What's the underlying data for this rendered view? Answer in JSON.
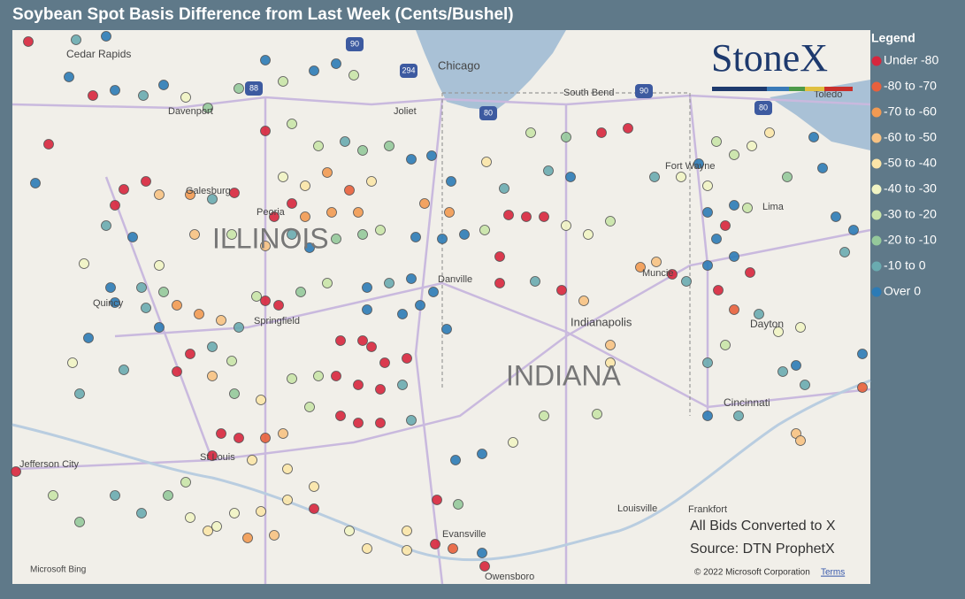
{
  "header": {
    "title": "Soybean Spot Basis Difference from Last Week (Cents/Bushel)"
  },
  "logo": "StoneX",
  "legend": {
    "title": "Legend",
    "items": [
      {
        "label": "Under -80",
        "color": "#d7263d"
      },
      {
        "label": "-80 to -70",
        "color": "#e8603c"
      },
      {
        "label": "-70 to -60",
        "color": "#f29a52"
      },
      {
        "label": "-60 to -50",
        "color": "#f7c283"
      },
      {
        "label": "-50 to -40",
        "color": "#fbe5a8"
      },
      {
        "label": "-40 to -30",
        "color": "#f1f4c4"
      },
      {
        "label": "-30 to -20",
        "color": "#c9e4a9"
      },
      {
        "label": "-20 to -10",
        "color": "#95c99b"
      },
      {
        "label": "-10 to 0",
        "color": "#6aabb0"
      },
      {
        "label": "Over 0",
        "color": "#2c7bb6"
      }
    ]
  },
  "map": {
    "places": [
      {
        "label": "Cedar Rapids"
      },
      {
        "label": "Chicago"
      },
      {
        "label": "South Bend"
      },
      {
        "label": "Toledo"
      },
      {
        "label": "Davenport"
      },
      {
        "label": "Joliet"
      },
      {
        "label": "Galesburg"
      },
      {
        "label": "Peoria"
      },
      {
        "label": "ILLINOIS"
      },
      {
        "label": "Fort Wayne"
      },
      {
        "label": "Lima"
      },
      {
        "label": "Quincy"
      },
      {
        "label": "Springfield"
      },
      {
        "label": "Danville"
      },
      {
        "label": "Muncie"
      },
      {
        "label": "Indianapolis"
      },
      {
        "label": "Dayton"
      },
      {
        "label": "INDIANA"
      },
      {
        "label": "Cincinnati"
      },
      {
        "label": "Jefferson City"
      },
      {
        "label": "St Louis"
      },
      {
        "label": "Louisville"
      },
      {
        "label": "Frankfort"
      },
      {
        "label": "Evansville"
      },
      {
        "label": "Owensboro"
      }
    ],
    "shields": [
      "90",
      "294",
      "88",
      "80",
      "90",
      "80"
    ]
  },
  "notes": [
    "All Bids Converted to X",
    "Source: DTN ProphetX"
  ],
  "footer": {
    "brand": "Microsoft Bing",
    "copyright": "© 2022 Microsoft Corporation",
    "terms": "Terms"
  }
}
